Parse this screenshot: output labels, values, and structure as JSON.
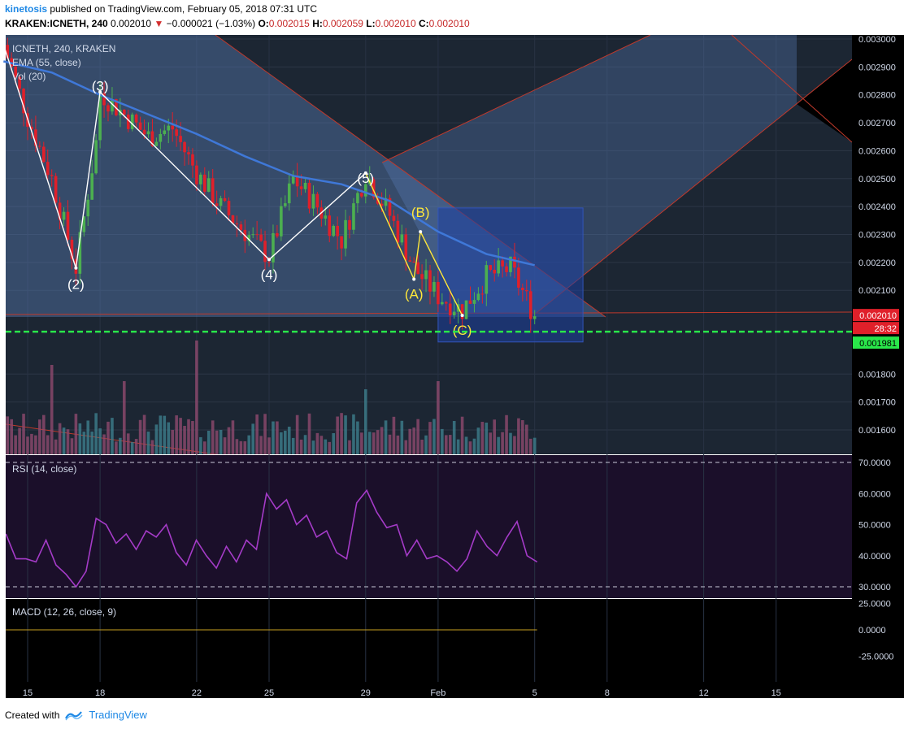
{
  "header": {
    "user": "kinetosis",
    "published": " published on TradingView.com, February 05, 2018 07:31 UTC",
    "symbol": "KRAKEN:ICNETH, 240",
    "last": "0.002010",
    "change": "−0.000021 (−1.03%)",
    "open_label": "O:",
    "open": "0.002015",
    "high_label": "H:",
    "high": "0.002059",
    "low_label": "L:",
    "low": "0.002010",
    "close_label": "C:",
    "close": "0.002010"
  },
  "footer": {
    "created_with": "Created with",
    "brand": "TradingView"
  },
  "colors": {
    "bg": "#1c2633",
    "rsi_bg": "#1b0f2a",
    "macd_bg": "#000000",
    "up": "#4caf50",
    "down": "#e0202a",
    "ema": "#3f78d8",
    "rsi": "#a53bc8",
    "channel": "#5a7fb8",
    "target_box": "#1d3fa0",
    "support": "#29e64a",
    "wave": "#ffffff",
    "wave_abc": "#ffe83a"
  },
  "chart_data": [
    {
      "type": "candlestick",
      "title": "ICNETH, 240, KRAKEN",
      "indicators": [
        "EMA (55, close)",
        "Vol (20)"
      ],
      "ylim": [
        0.00152,
        0.00303
      ],
      "y_ticks": [
        "0.003000",
        "0.002900",
        "0.002800",
        "0.002700",
        "0.002600",
        "0.002500",
        "0.002400",
        "0.002300",
        "0.002200",
        "0.002100",
        "0.001800",
        "0.001700",
        "0.001600"
      ],
      "price_labels": {
        "last": "0.002010",
        "countdown": "28:32",
        "support": "0.001981"
      },
      "x_ticks": [
        "15",
        "18",
        "22",
        "25",
        "29",
        "Feb",
        "5",
        "8",
        "12",
        "15"
      ],
      "x_tick_days": [
        15,
        18,
        22,
        25,
        29,
        32,
        36,
        39,
        43,
        46
      ],
      "x_axis_start": "2018-01-14",
      "price_path": [
        [
          "2018-01-14",
          0.00298
        ],
        [
          "2018-01-15",
          0.00272
        ],
        [
          "2018-01-16",
          0.0025
        ],
        [
          "2018-01-17",
          0.00218
        ],
        [
          "2018-01-18",
          0.00272
        ],
        [
          "2018-01-18",
          0.00281
        ],
        [
          "2018-01-20",
          0.00265
        ],
        [
          "2018-01-21",
          0.00268
        ],
        [
          "2018-01-22",
          0.00252
        ],
        [
          "2018-01-23",
          0.0024
        ],
        [
          "2018-01-25",
          0.00222
        ],
        [
          "2018-01-26",
          0.0025
        ],
        [
          "2018-01-27",
          0.0024
        ],
        [
          "2018-01-28",
          0.00228
        ],
        [
          "2018-01-29",
          0.00252
        ],
        [
          "2018-01-30",
          0.00237
        ],
        [
          "2018-01-31",
          0.00218
        ],
        [
          "2018-02-01",
          0.00208
        ],
        [
          "2018-02-02",
          0.00203
        ],
        [
          "2018-02-03",
          0.00215
        ],
        [
          "2018-02-04",
          0.00218
        ],
        [
          "2018-02-05",
          0.00201
        ]
      ],
      "ema": [
        [
          "2018-01-14",
          0.00292
        ],
        [
          "2018-01-16",
          0.00288
        ],
        [
          "2018-01-18",
          0.0028
        ],
        [
          "2018-01-20",
          0.00273
        ],
        [
          "2018-01-22",
          0.00266
        ],
        [
          "2018-01-24",
          0.00258
        ],
        [
          "2018-01-26",
          0.00251
        ],
        [
          "2018-01-28",
          0.00248
        ],
        [
          "2018-01-30",
          0.00242
        ],
        [
          "2018-02-01",
          0.00231
        ],
        [
          "2018-02-03",
          0.00223
        ],
        [
          "2018-02-05",
          0.00219
        ]
      ],
      "volume": {
        "median": 3,
        "spikes": [
          [
            "2018-01-22",
            14
          ],
          [
            "2018-02-01",
            9
          ],
          [
            "2018-01-16",
            11
          ],
          [
            "2018-01-19",
            9
          ],
          [
            "2018-01-29",
            8
          ]
        ]
      },
      "wave_labels_primary": [
        {
          "label": "(2)",
          "x": "2018-01-17",
          "y": 0.00218
        },
        {
          "label": "(3)",
          "x": "2018-01-18",
          "y": 0.00281
        },
        {
          "label": "(4)",
          "x": "2018-01-25",
          "y": 0.00221
        },
        {
          "label": "(5)",
          "x": "2018-01-29",
          "y": 0.00252
        }
      ],
      "wave_labels_corrective": [
        {
          "label": "(A)",
          "x": "2018-01-31",
          "y": 0.00214
        },
        {
          "label": "(B)",
          "x": "2018-01-31",
          "y": 0.00231
        },
        {
          "label": "(C)",
          "x": "2018-02-02",
          "y": 0.00201
        }
      ],
      "support_level": 0.001981,
      "target_box": {
        "x": [
          "2018-02-01",
          "2018-02-07"
        ],
        "y": [
          0.001915,
          0.002395
        ]
      }
    },
    {
      "type": "line",
      "title": "RSI (14, close)",
      "ylim": [
        27,
        74
      ],
      "y_ticks": [
        "70.0000",
        "60.0000",
        "50.0000",
        "40.0000",
        "30.0000"
      ],
      "bands": [
        70,
        30
      ],
      "values": [
        47,
        39,
        39,
        38,
        45,
        37,
        34,
        30,
        35,
        52,
        50,
        44,
        47,
        42,
        48,
        46,
        50,
        41,
        37,
        45,
        40,
        36,
        43,
        38,
        45,
        42,
        60,
        55,
        58,
        50,
        53,
        46,
        48,
        41,
        39,
        57,
        61,
        54,
        49,
        50,
        40,
        45,
        39,
        40,
        38,
        35,
        39,
        48,
        43,
        40,
        46,
        51,
        40,
        38
      ]
    },
    {
      "type": "line",
      "title": "MACD (12, 26, close, 9)",
      "ylim": [
        -35,
        28
      ],
      "y_ticks": [
        "25.0000",
        "0.0000",
        "-25.0000"
      ],
      "values": [
        0,
        0
      ]
    }
  ]
}
